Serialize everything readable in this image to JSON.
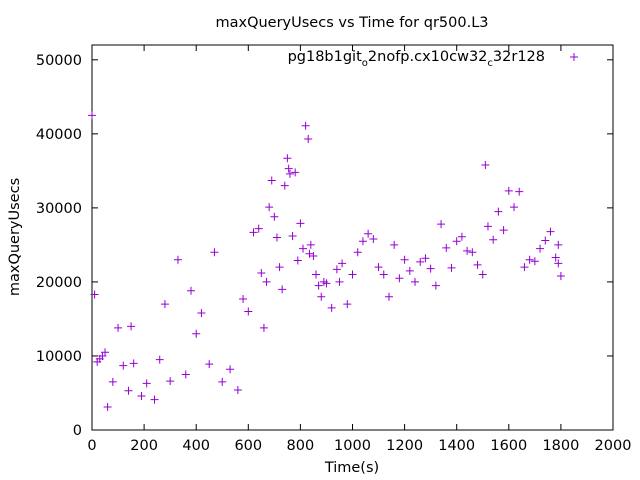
{
  "chart_data": {
    "type": "scatter",
    "title": "maxQueryUsecs vs Time for qr500.L3",
    "xlabel": "Time(s)",
    "ylabel": "maxQueryUsecs",
    "xlim": [
      0,
      2000
    ],
    "ylim": [
      0,
      52000
    ],
    "x_ticks": [
      "0",
      "200",
      "400",
      "600",
      "800",
      "1000",
      "1200",
      "1400",
      "1600",
      "1800",
      "2000"
    ],
    "y_ticks": [
      "0",
      "10000",
      "20000",
      "30000",
      "40000",
      "50000"
    ],
    "grid": false,
    "legend_position": "top-right",
    "marker": "plus",
    "series": [
      {
        "name": "pg18b1git_o2nofp.cx10cw32_c32r128",
        "legend_base": "pg18b1git",
        "legend_sub1": "o",
        "legend_mid": "2nofp.cx10cw32",
        "legend_sub2": "c",
        "legend_end": "32r128",
        "color": "#9400d3",
        "points": [
          [
            0,
            42500
          ],
          [
            10,
            18300
          ],
          [
            20,
            9200
          ],
          [
            30,
            9600
          ],
          [
            40,
            10000
          ],
          [
            50,
            10500
          ],
          [
            60,
            3100
          ],
          [
            80,
            6500
          ],
          [
            100,
            13800
          ],
          [
            120,
            8700
          ],
          [
            140,
            5300
          ],
          [
            150,
            14000
          ],
          [
            160,
            9000
          ],
          [
            190,
            4600
          ],
          [
            210,
            6300
          ],
          [
            240,
            4100
          ],
          [
            260,
            9500
          ],
          [
            280,
            17000
          ],
          [
            300,
            6600
          ],
          [
            330,
            23000
          ],
          [
            360,
            7500
          ],
          [
            380,
            18800
          ],
          [
            400,
            13000
          ],
          [
            420,
            15800
          ],
          [
            450,
            8900
          ],
          [
            470,
            24000
          ],
          [
            500,
            6500
          ],
          [
            530,
            8200
          ],
          [
            560,
            5400
          ],
          [
            580,
            17700
          ],
          [
            600,
            16000
          ],
          [
            620,
            26700
          ],
          [
            640,
            27200
          ],
          [
            650,
            21200
          ],
          [
            660,
            13800
          ],
          [
            670,
            20000
          ],
          [
            680,
            30100
          ],
          [
            690,
            33700
          ],
          [
            700,
            28800
          ],
          [
            710,
            26000
          ],
          [
            720,
            22000
          ],
          [
            730,
            19000
          ],
          [
            740,
            33000
          ],
          [
            750,
            36700
          ],
          [
            755,
            35300
          ],
          [
            760,
            34600
          ],
          [
            770,
            26200
          ],
          [
            780,
            34800
          ],
          [
            790,
            22900
          ],
          [
            800,
            27900
          ],
          [
            810,
            24500
          ],
          [
            820,
            41100
          ],
          [
            830,
            39300
          ],
          [
            835,
            23800
          ],
          [
            840,
            25000
          ],
          [
            850,
            23500
          ],
          [
            860,
            21000
          ],
          [
            870,
            19500
          ],
          [
            880,
            18000
          ],
          [
            890,
            20000
          ],
          [
            900,
            19800
          ],
          [
            920,
            16500
          ],
          [
            940,
            21700
          ],
          [
            950,
            20000
          ],
          [
            960,
            22500
          ],
          [
            980,
            17000
          ],
          [
            1000,
            21000
          ],
          [
            1020,
            24000
          ],
          [
            1040,
            25500
          ],
          [
            1060,
            26500
          ],
          [
            1080,
            25800
          ],
          [
            1100,
            22000
          ],
          [
            1120,
            21000
          ],
          [
            1140,
            18000
          ],
          [
            1160,
            25000
          ],
          [
            1180,
            20500
          ],
          [
            1200,
            23000
          ],
          [
            1220,
            21500
          ],
          [
            1240,
            20000
          ],
          [
            1260,
            22700
          ],
          [
            1280,
            23200
          ],
          [
            1300,
            21800
          ],
          [
            1320,
            19500
          ],
          [
            1340,
            27800
          ],
          [
            1360,
            24600
          ],
          [
            1380,
            21900
          ],
          [
            1400,
            25500
          ],
          [
            1420,
            26100
          ],
          [
            1440,
            24200
          ],
          [
            1460,
            24000
          ],
          [
            1480,
            22300
          ],
          [
            1500,
            21000
          ],
          [
            1510,
            35800
          ],
          [
            1520,
            27500
          ],
          [
            1540,
            25700
          ],
          [
            1560,
            29500
          ],
          [
            1580,
            27000
          ],
          [
            1600,
            32300
          ],
          [
            1620,
            30100
          ],
          [
            1640,
            32200
          ],
          [
            1660,
            22000
          ],
          [
            1680,
            23000
          ],
          [
            1700,
            22800
          ],
          [
            1720,
            24500
          ],
          [
            1740,
            25600
          ],
          [
            1760,
            26800
          ],
          [
            1780,
            23300
          ],
          [
            1790,
            22500
          ],
          [
            1800,
            20800
          ],
          [
            1790,
            25000
          ]
        ]
      }
    ]
  }
}
